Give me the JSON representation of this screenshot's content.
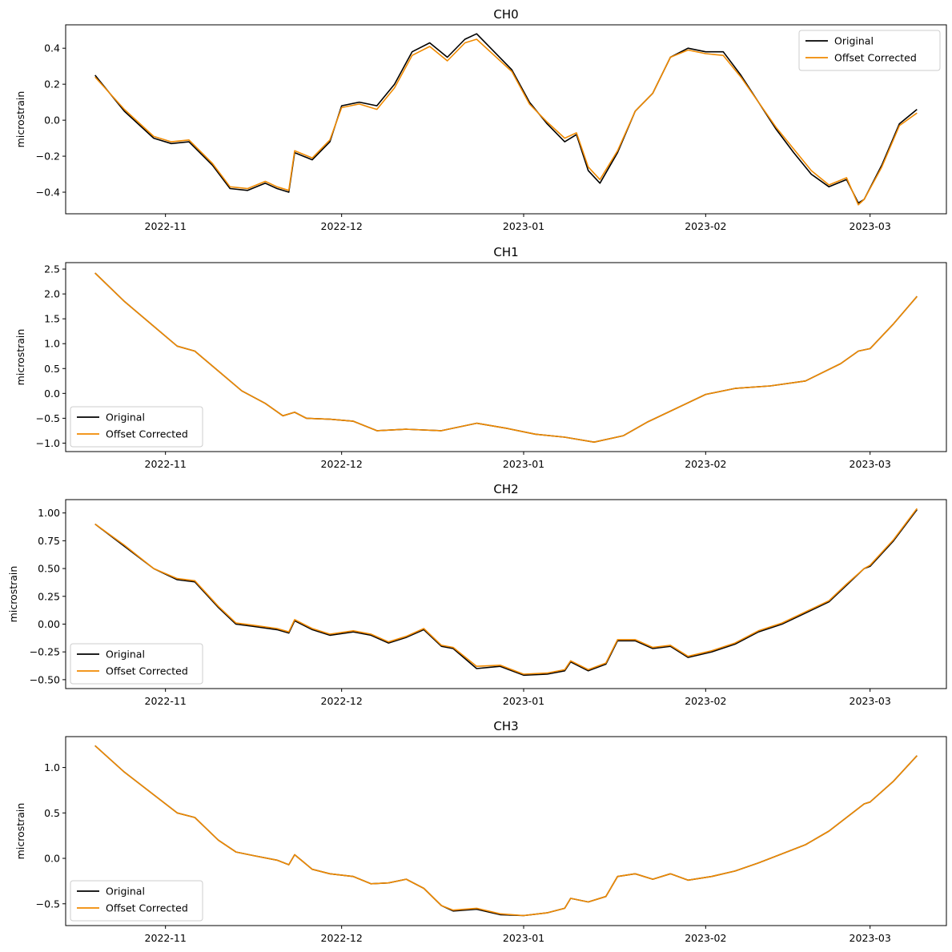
{
  "colors": {
    "original": "#000000",
    "corrected": "#f08a00"
  },
  "chart_data": [
    {
      "type": "line",
      "title": "CH0",
      "xlabel": "",
      "ylabel": "microstrain",
      "xlim": [
        "2022-10-15",
        "2023-03-14"
      ],
      "ylim": [
        -0.52,
        0.53
      ],
      "yticks": [
        "0.4",
        "0.2",
        "0.0",
        "−0.2",
        "−0.4"
      ],
      "xticks": [
        "2022-11",
        "2022-12",
        "2023-01",
        "2023-02",
        "2023-03"
      ],
      "legend": {
        "position": "top-right",
        "entries": [
          "Original",
          "Offset Corrected"
        ]
      },
      "grid": false,
      "series": [
        {
          "name": "Original",
          "x": [
            "2022-10-20",
            "2022-10-25",
            "2022-10-30",
            "2022-11-02",
            "2022-11-05",
            "2022-11-09",
            "2022-11-12",
            "2022-11-15",
            "2022-11-18",
            "2022-11-20",
            "2022-11-22",
            "2022-11-23",
            "2022-11-26",
            "2022-11-29",
            "2022-12-01",
            "2022-12-04",
            "2022-12-07",
            "2022-12-10",
            "2022-12-13",
            "2022-12-16",
            "2022-12-19",
            "2022-12-22",
            "2022-12-24",
            "2022-12-27",
            "2022-12-30",
            "2023-01-02",
            "2023-01-05",
            "2023-01-08",
            "2023-01-10",
            "2023-01-12",
            "2023-01-14",
            "2023-01-17",
            "2023-01-20",
            "2023-01-23",
            "2023-01-26",
            "2023-01-29",
            "2023-02-01",
            "2023-02-04",
            "2023-02-07",
            "2023-02-10",
            "2023-02-13",
            "2023-02-16",
            "2023-02-19",
            "2023-02-22",
            "2023-02-25",
            "2023-02-27",
            "2023-02-28",
            "2023-03-03",
            "2023-03-06",
            "2023-03-09"
          ],
          "y": [
            0.25,
            0.05,
            -0.1,
            -0.13,
            -0.12,
            -0.25,
            -0.38,
            -0.39,
            -0.35,
            -0.38,
            -0.4,
            -0.18,
            -0.22,
            -0.12,
            0.08,
            0.1,
            0.08,
            0.2,
            0.38,
            0.43,
            0.35,
            0.45,
            0.48,
            0.38,
            0.28,
            0.1,
            -0.02,
            -0.12,
            -0.08,
            -0.28,
            -0.35,
            -0.18,
            0.05,
            0.15,
            0.35,
            0.4,
            0.38,
            0.38,
            0.25,
            0.1,
            -0.05,
            -0.18,
            -0.3,
            -0.37,
            -0.33,
            -0.46,
            -0.44,
            -0.25,
            -0.02,
            0.06
          ]
        },
        {
          "name": "Offset Corrected",
          "x": [
            "2022-10-20",
            "2022-10-25",
            "2022-10-30",
            "2022-11-02",
            "2022-11-05",
            "2022-11-09",
            "2022-11-12",
            "2022-11-15",
            "2022-11-18",
            "2022-11-20",
            "2022-11-22",
            "2022-11-23",
            "2022-11-26",
            "2022-11-29",
            "2022-12-01",
            "2022-12-04",
            "2022-12-07",
            "2022-12-10",
            "2022-12-13",
            "2022-12-16",
            "2022-12-19",
            "2022-12-22",
            "2022-12-24",
            "2022-12-27",
            "2022-12-30",
            "2023-01-02",
            "2023-01-05",
            "2023-01-08",
            "2023-01-10",
            "2023-01-12",
            "2023-01-14",
            "2023-01-17",
            "2023-01-20",
            "2023-01-23",
            "2023-01-26",
            "2023-01-29",
            "2023-02-01",
            "2023-02-04",
            "2023-02-07",
            "2023-02-10",
            "2023-02-13",
            "2023-02-16",
            "2023-02-19",
            "2023-02-22",
            "2023-02-25",
            "2023-02-27",
            "2023-02-28",
            "2023-03-03",
            "2023-03-06",
            "2023-03-09"
          ],
          "y": [
            0.24,
            0.06,
            -0.09,
            -0.12,
            -0.11,
            -0.24,
            -0.37,
            -0.38,
            -0.34,
            -0.37,
            -0.39,
            -0.17,
            -0.21,
            -0.11,
            0.07,
            0.09,
            0.06,
            0.18,
            0.36,
            0.41,
            0.33,
            0.43,
            0.45,
            0.36,
            0.27,
            0.09,
            -0.01,
            -0.1,
            -0.07,
            -0.26,
            -0.33,
            -0.17,
            0.05,
            0.15,
            0.35,
            0.39,
            0.37,
            0.36,
            0.24,
            0.1,
            -0.04,
            -0.16,
            -0.28,
            -0.36,
            -0.32,
            -0.47,
            -0.44,
            -0.26,
            -0.03,
            0.04
          ]
        }
      ]
    },
    {
      "type": "line",
      "title": "CH1",
      "xlabel": "",
      "ylabel": "microstrain",
      "xlim": [
        "2022-10-15",
        "2023-03-14"
      ],
      "ylim": [
        -1.17,
        2.63
      ],
      "yticks": [
        "2.5",
        "2.0",
        "1.5",
        "1.0",
        "0.5",
        "0.0",
        "−0.5",
        "−1.0"
      ],
      "xticks": [
        "2022-11",
        "2022-12",
        "2023-01",
        "2023-02",
        "2023-03"
      ],
      "legend": {
        "position": "bottom-left",
        "entries": [
          "Original",
          "Offset Corrected"
        ]
      },
      "grid": false,
      "series": [
        {
          "name": "Original",
          "x": [
            "2022-10-20",
            "2022-10-25",
            "2022-10-30",
            "2022-11-03",
            "2022-11-06",
            "2022-11-10",
            "2022-11-14",
            "2022-11-18",
            "2022-11-21",
            "2022-11-23",
            "2022-11-25",
            "2022-11-29",
            "2022-12-03",
            "2022-12-07",
            "2022-12-12",
            "2022-12-18",
            "2022-12-24",
            "2022-12-29",
            "2023-01-03",
            "2023-01-08",
            "2023-01-13",
            "2023-01-18",
            "2023-01-22",
            "2023-01-27",
            "2023-02-01",
            "2023-02-06",
            "2023-02-12",
            "2023-02-18",
            "2023-02-24",
            "2023-02-27",
            "2023-03-01",
            "2023-03-05",
            "2023-03-09"
          ],
          "y": [
            2.42,
            1.85,
            1.35,
            0.95,
            0.85,
            0.45,
            0.05,
            -0.2,
            -0.45,
            -0.38,
            -0.5,
            -0.52,
            -0.56,
            -0.75,
            -0.72,
            -0.75,
            -0.6,
            -0.7,
            -0.82,
            -0.88,
            -0.98,
            -0.85,
            -0.58,
            -0.3,
            -0.02,
            0.1,
            0.15,
            0.25,
            0.6,
            0.85,
            0.9,
            1.4,
            1.95
          ]
        },
        {
          "name": "Offset Corrected",
          "x": [
            "2022-10-20",
            "2022-10-25",
            "2022-10-30",
            "2022-11-03",
            "2022-11-06",
            "2022-11-10",
            "2022-11-14",
            "2022-11-18",
            "2022-11-21",
            "2022-11-23",
            "2022-11-25",
            "2022-11-29",
            "2022-12-03",
            "2022-12-07",
            "2022-12-12",
            "2022-12-18",
            "2022-12-24",
            "2022-12-29",
            "2023-01-03",
            "2023-01-08",
            "2023-01-13",
            "2023-01-18",
            "2023-01-22",
            "2023-01-27",
            "2023-02-01",
            "2023-02-06",
            "2023-02-12",
            "2023-02-18",
            "2023-02-24",
            "2023-02-27",
            "2023-03-01",
            "2023-03-05",
            "2023-03-09"
          ],
          "y": [
            2.42,
            1.85,
            1.35,
            0.95,
            0.85,
            0.45,
            0.05,
            -0.2,
            -0.45,
            -0.38,
            -0.5,
            -0.52,
            -0.56,
            -0.75,
            -0.72,
            -0.75,
            -0.6,
            -0.7,
            -0.82,
            -0.88,
            -0.98,
            -0.85,
            -0.58,
            -0.3,
            -0.02,
            0.1,
            0.15,
            0.25,
            0.6,
            0.85,
            0.9,
            1.4,
            1.95
          ]
        }
      ]
    },
    {
      "type": "line",
      "title": "CH2",
      "xlabel": "",
      "ylabel": "microstrain",
      "xlim": [
        "2022-10-15",
        "2023-03-14"
      ],
      "ylim": [
        -0.58,
        1.12
      ],
      "yticks": [
        "1.00",
        "0.75",
        "0.50",
        "0.25",
        "0.00",
        "−0.25",
        "−0.50"
      ],
      "xticks": [
        "2022-11",
        "2022-12",
        "2023-01",
        "2023-02",
        "2023-03"
      ],
      "legend": {
        "position": "bottom-left",
        "entries": [
          "Original",
          "Offset Corrected"
        ]
      },
      "grid": false,
      "series": [
        {
          "name": "Original",
          "x": [
            "2022-10-20",
            "2022-10-25",
            "2022-10-30",
            "2022-11-03",
            "2022-11-06",
            "2022-11-10",
            "2022-11-13",
            "2022-11-16",
            "2022-11-20",
            "2022-11-22",
            "2022-11-23",
            "2022-11-26",
            "2022-11-29",
            "2022-12-03",
            "2022-12-06",
            "2022-12-09",
            "2022-12-12",
            "2022-12-15",
            "2022-12-18",
            "2022-12-20",
            "2022-12-24",
            "2022-12-28",
            "2023-01-01",
            "2023-01-05",
            "2023-01-08",
            "2023-01-09",
            "2023-01-12",
            "2023-01-15",
            "2023-01-17",
            "2023-01-20",
            "2023-01-23",
            "2023-01-26",
            "2023-01-29",
            "2023-02-02",
            "2023-02-06",
            "2023-02-10",
            "2023-02-14",
            "2023-02-18",
            "2023-02-22",
            "2023-02-25",
            "2023-02-28",
            "2023-03-01",
            "2023-03-05",
            "2023-03-09"
          ],
          "y": [
            0.9,
            0.7,
            0.5,
            0.4,
            0.38,
            0.15,
            0.0,
            -0.02,
            -0.05,
            -0.08,
            0.03,
            -0.05,
            -0.1,
            -0.07,
            -0.1,
            -0.17,
            -0.12,
            -0.05,
            -0.2,
            -0.22,
            -0.4,
            -0.38,
            -0.46,
            -0.45,
            -0.42,
            -0.34,
            -0.42,
            -0.36,
            -0.15,
            -0.15,
            -0.22,
            -0.2,
            -0.3,
            -0.25,
            -0.18,
            -0.07,
            0.0,
            0.1,
            0.2,
            0.35,
            0.5,
            0.52,
            0.75,
            1.03
          ]
        },
        {
          "name": "Offset Corrected",
          "x": [
            "2022-10-20",
            "2022-10-25",
            "2022-10-30",
            "2022-11-03",
            "2022-11-06",
            "2022-11-10",
            "2022-11-13",
            "2022-11-16",
            "2022-11-20",
            "2022-11-22",
            "2022-11-23",
            "2022-11-26",
            "2022-11-29",
            "2022-12-03",
            "2022-12-06",
            "2022-12-09",
            "2022-12-12",
            "2022-12-15",
            "2022-12-18",
            "2022-12-20",
            "2022-12-24",
            "2022-12-28",
            "2023-01-01",
            "2023-01-05",
            "2023-01-08",
            "2023-01-09",
            "2023-01-12",
            "2023-01-15",
            "2023-01-17",
            "2023-01-20",
            "2023-01-23",
            "2023-01-26",
            "2023-01-29",
            "2023-02-02",
            "2023-02-06",
            "2023-02-10",
            "2023-02-14",
            "2023-02-18",
            "2023-02-22",
            "2023-02-25",
            "2023-02-28",
            "2023-03-01",
            "2023-03-05",
            "2023-03-09"
          ],
          "y": [
            0.9,
            0.71,
            0.5,
            0.41,
            0.39,
            0.16,
            0.01,
            -0.01,
            -0.04,
            -0.07,
            0.04,
            -0.04,
            -0.09,
            -0.06,
            -0.09,
            -0.16,
            -0.11,
            -0.04,
            -0.19,
            -0.21,
            -0.38,
            -0.37,
            -0.45,
            -0.44,
            -0.41,
            -0.33,
            -0.41,
            -0.35,
            -0.14,
            -0.14,
            -0.21,
            -0.19,
            -0.29,
            -0.24,
            -0.17,
            -0.06,
            0.01,
            0.11,
            0.21,
            0.36,
            0.5,
            0.53,
            0.76,
            1.04
          ]
        }
      ]
    },
    {
      "type": "line",
      "title": "CH3",
      "xlabel": "",
      "ylabel": "microstrain",
      "xlim": [
        "2022-10-15",
        "2023-03-14"
      ],
      "ylim": [
        -0.74,
        1.34
      ],
      "yticks": [
        "1.0",
        "0.5",
        "0.0",
        "−0.5"
      ],
      "xticks": [
        "2022-11",
        "2022-12",
        "2023-01",
        "2023-02",
        "2023-03"
      ],
      "legend": {
        "position": "bottom-left",
        "entries": [
          "Original",
          "Offset Corrected"
        ]
      },
      "grid": false,
      "series": [
        {
          "name": "Original",
          "x": [
            "2022-10-20",
            "2022-10-25",
            "2022-10-30",
            "2022-11-03",
            "2022-11-06",
            "2022-11-10",
            "2022-11-13",
            "2022-11-16",
            "2022-11-20",
            "2022-11-22",
            "2022-11-23",
            "2022-11-26",
            "2022-11-29",
            "2022-12-03",
            "2022-12-06",
            "2022-12-09",
            "2022-12-12",
            "2022-12-15",
            "2022-12-18",
            "2022-12-20",
            "2022-12-24",
            "2022-12-28",
            "2023-01-01",
            "2023-01-05",
            "2023-01-08",
            "2023-01-09",
            "2023-01-12",
            "2023-01-15",
            "2023-01-17",
            "2023-01-20",
            "2023-01-23",
            "2023-01-26",
            "2023-01-29",
            "2023-02-02",
            "2023-02-06",
            "2023-02-10",
            "2023-02-14",
            "2023-02-18",
            "2023-02-22",
            "2023-02-25",
            "2023-02-28",
            "2023-03-01",
            "2023-03-05",
            "2023-03-09"
          ],
          "y": [
            1.24,
            0.95,
            0.7,
            0.5,
            0.45,
            0.2,
            0.07,
            0.03,
            -0.02,
            -0.07,
            0.04,
            -0.12,
            -0.17,
            -0.2,
            -0.28,
            -0.27,
            -0.23,
            -0.33,
            -0.52,
            -0.58,
            -0.56,
            -0.62,
            -0.63,
            -0.6,
            -0.55,
            -0.44,
            -0.48,
            -0.42,
            -0.2,
            -0.17,
            -0.23,
            -0.17,
            -0.24,
            -0.2,
            -0.14,
            -0.05,
            0.05,
            0.15,
            0.3,
            0.45,
            0.6,
            0.62,
            0.85,
            1.13
          ]
        },
        {
          "name": "Offset Corrected",
          "x": [
            "2022-10-20",
            "2022-10-25",
            "2022-10-30",
            "2022-11-03",
            "2022-11-06",
            "2022-11-10",
            "2022-11-13",
            "2022-11-16",
            "2022-11-20",
            "2022-11-22",
            "2022-11-23",
            "2022-11-26",
            "2022-11-29",
            "2022-12-03",
            "2022-12-06",
            "2022-12-09",
            "2022-12-12",
            "2022-12-15",
            "2022-12-18",
            "2022-12-20",
            "2022-12-24",
            "2022-12-28",
            "2023-01-01",
            "2023-01-05",
            "2023-01-08",
            "2023-01-09",
            "2023-01-12",
            "2023-01-15",
            "2023-01-17",
            "2023-01-20",
            "2023-01-23",
            "2023-01-26",
            "2023-01-29",
            "2023-02-02",
            "2023-02-06",
            "2023-02-10",
            "2023-02-14",
            "2023-02-18",
            "2023-02-22",
            "2023-02-25",
            "2023-02-28",
            "2023-03-01",
            "2023-03-05",
            "2023-03-09"
          ],
          "y": [
            1.24,
            0.95,
            0.7,
            0.5,
            0.45,
            0.2,
            0.07,
            0.03,
            -0.02,
            -0.07,
            0.04,
            -0.12,
            -0.17,
            -0.2,
            -0.28,
            -0.27,
            -0.23,
            -0.33,
            -0.52,
            -0.57,
            -0.55,
            -0.61,
            -0.63,
            -0.6,
            -0.55,
            -0.44,
            -0.48,
            -0.42,
            -0.2,
            -0.17,
            -0.23,
            -0.17,
            -0.24,
            -0.2,
            -0.14,
            -0.05,
            0.05,
            0.15,
            0.3,
            0.45,
            0.6,
            0.62,
            0.85,
            1.13
          ]
        }
      ]
    }
  ]
}
